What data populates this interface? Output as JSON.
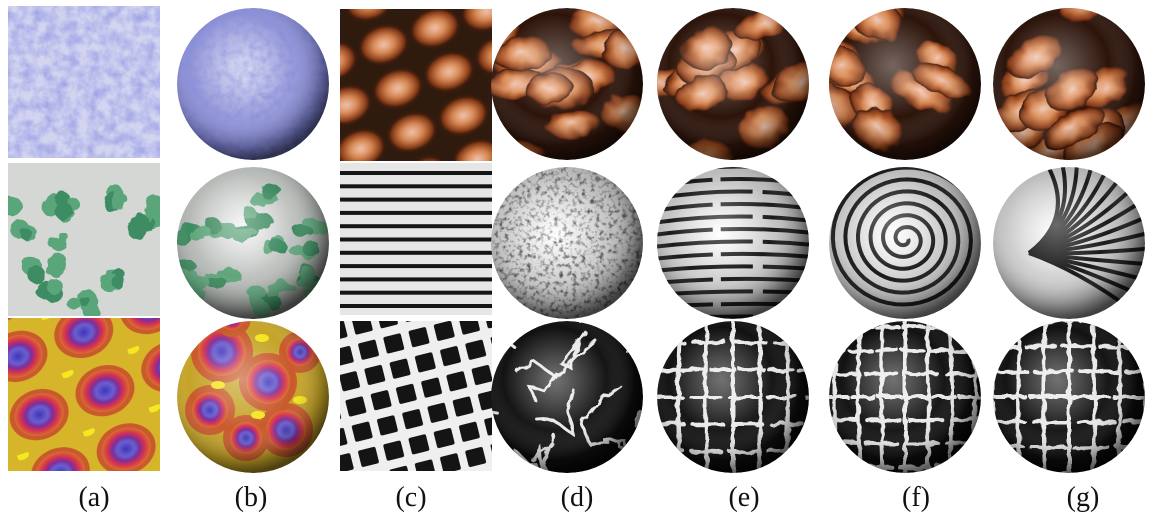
{
  "figure": {
    "captions": [
      "(a)",
      "(b)",
      "(c)",
      "(d)",
      "(e)",
      "(f)",
      "(g)"
    ],
    "rows": [
      {
        "texture": "blue granite noise",
        "colors": {
          "base": "#8e92d6",
          "light": "#d9dbf2",
          "dark": "#3f46a8"
        },
        "panels": [
          "input texture",
          "sphere synthesis",
          "orange cell pattern",
          "sphere",
          "sphere",
          "sphere",
          "sphere"
        ]
      },
      {
        "texture": "green leaf blotches",
        "colors": {
          "base": "#c9ccc8",
          "blob": "#5aa67a",
          "dark": "#2f7a55"
        },
        "panels": [
          "input texture",
          "sphere synthesis",
          "horizontal stripes",
          "sphere",
          "sphere",
          "sphere",
          "sphere"
        ]
      },
      {
        "texture": "reaction-diffusion spots / crack network",
        "colors": {
          "yellow": "#e9d21b",
          "red": "#d32e56",
          "purple": "#5a2ca8",
          "black": "#0f0f0f",
          "white": "#e8e8e8"
        },
        "panels": [
          "input texture",
          "sphere synthesis",
          "cracked grid",
          "sphere",
          "sphere",
          "sphere",
          "sphere"
        ]
      }
    ]
  }
}
